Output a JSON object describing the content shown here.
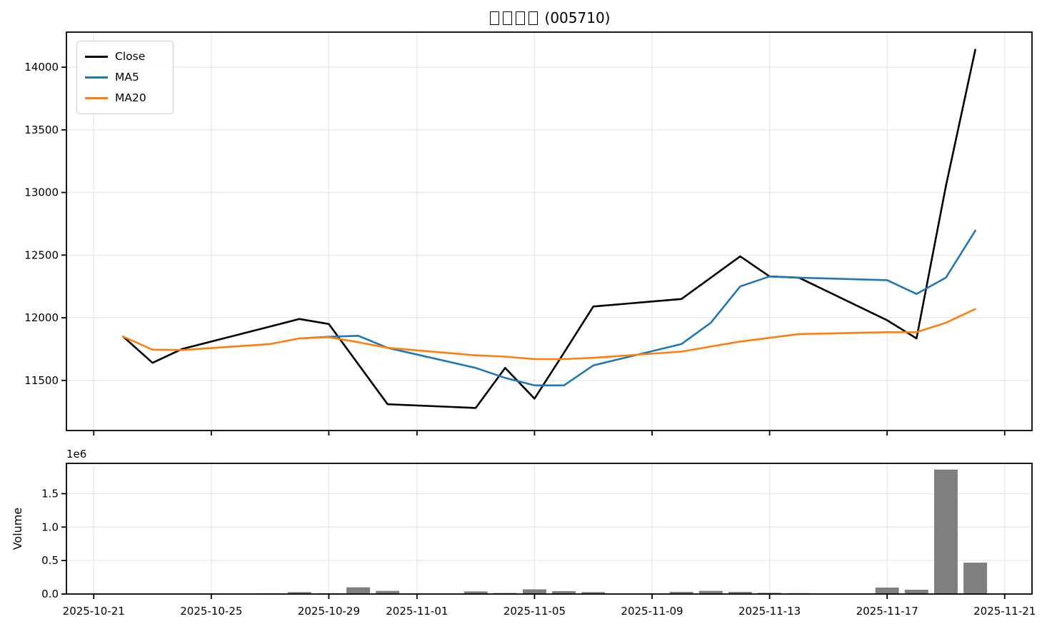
{
  "figure": {
    "title": {
      "missing_glyph_count": 4,
      "code_text": "(005710)",
      "display": "□□□□ (005710)"
    }
  },
  "legend": {
    "items": [
      {
        "label": "Close",
        "color": "#000000"
      },
      {
        "label": "MA5",
        "color": "#1f77b4"
      },
      {
        "label": "MA20",
        "color": "#ff7f0e"
      }
    ]
  },
  "colors": {
    "close_line": "#000000",
    "ma5_line": "#1f77b4",
    "ma20_line": "#ff7f0e",
    "volume_bar": "#7f7f7f",
    "grid": "#e7e7e7",
    "spine": "#000000",
    "background": "#ffffff"
  },
  "chart_data": [
    {
      "type": "line",
      "title": "□□□□ (005710)",
      "x_dates": [
        "2025-10-22",
        "2025-10-23",
        "2025-10-24",
        "2025-10-27",
        "2025-10-28",
        "2025-10-29",
        "2025-10-30",
        "2025-10-31",
        "2025-11-03",
        "2025-11-04",
        "2025-11-05",
        "2025-11-06",
        "2025-11-07",
        "2025-11-10",
        "2025-11-11",
        "2025-11-12",
        "2025-11-13",
        "2025-11-14",
        "2025-11-17",
        "2025-11-18",
        "2025-11-19",
        "2025-11-20"
      ],
      "series": [
        {
          "name": "Close",
          "color": "#000000",
          "values": [
            11850,
            11640,
            11750,
            11930,
            11990,
            11950,
            11630,
            11310,
            11280,
            11600,
            11355,
            11720,
            12090,
            12150,
            12320,
            12490,
            12330,
            12320,
            11980,
            11835,
            13050,
            14140
          ]
        },
        {
          "name": "MA5",
          "color": "#1f77b4",
          "values": [
            null,
            null,
            null,
            null,
            11835,
            11848,
            11856,
            11760,
            11600,
            11520,
            11460,
            11460,
            11620,
            11790,
            11960,
            12250,
            12330,
            12320,
            12300,
            12190,
            12320,
            12695
          ]
        },
        {
          "name": "MA20",
          "color": "#ff7f0e",
          "values": [
            11850,
            11745,
            11742,
            11790,
            11835,
            11845,
            11805,
            11760,
            11700,
            11690,
            11670,
            11670,
            11680,
            11730,
            11770,
            11810,
            11840,
            11870,
            11885,
            11885,
            11960,
            12070
          ]
        }
      ],
      "x_tick_labels": [
        "2025-10-21",
        "2025-10-25",
        "2025-10-29",
        "2025-11-01",
        "2025-11-05",
        "2025-11-09",
        "2025-11-13",
        "2025-11-17",
        "2025-11-21"
      ],
      "y_ticks": [
        11500,
        12000,
        12500,
        13000,
        13500,
        14000
      ],
      "ylim": [
        11100,
        14280
      ],
      "xlim_dates": [
        "2025-10-20",
        "2025-11-21"
      ],
      "grid": true,
      "legend_position": "upper left"
    },
    {
      "type": "bar",
      "ylabel": "Volume",
      "offset_label": "1e6",
      "x_dates": [
        "2025-10-22",
        "2025-10-23",
        "2025-10-24",
        "2025-10-27",
        "2025-10-28",
        "2025-10-29",
        "2025-10-30",
        "2025-10-31",
        "2025-11-03",
        "2025-11-04",
        "2025-11-05",
        "2025-11-06",
        "2025-11-07",
        "2025-11-10",
        "2025-11-11",
        "2025-11-12",
        "2025-11-13",
        "2025-11-14",
        "2025-11-17",
        "2025-11-18",
        "2025-11-19",
        "2025-11-20"
      ],
      "values": [
        4000,
        4000,
        5000,
        10000,
        29000,
        12000,
        100000,
        47000,
        39000,
        15000,
        70000,
        43000,
        29000,
        32000,
        47000,
        32000,
        18000,
        13000,
        96000,
        64000,
        1860000,
        469000
      ],
      "y_tick_labels": [
        "0.0",
        "0.5",
        "1.0",
        "1.5"
      ],
      "y_tick_values": [
        0,
        500000,
        1000000,
        1500000
      ],
      "ylim": [
        0,
        1953000
      ],
      "grid": true,
      "bar_color": "#7f7f7f"
    }
  ]
}
